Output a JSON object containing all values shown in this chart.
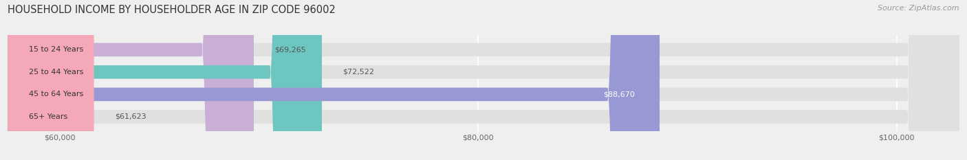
{
  "title": "HOUSEHOLD INCOME BY HOUSEHOLDER AGE IN ZIP CODE 96002",
  "source": "Source: ZipAtlas.com",
  "categories": [
    "15 to 24 Years",
    "25 to 44 Years",
    "45 to 64 Years",
    "65+ Years"
  ],
  "values": [
    69265,
    72522,
    88670,
    61623
  ],
  "bar_colors": [
    "#c9aed6",
    "#6ec6c1",
    "#9898d4",
    "#f5a8b8"
  ],
  "bar_labels": [
    "$69,265",
    "$72,522",
    "$88,670",
    "$61,623"
  ],
  "label_colors": [
    "#555555",
    "#555555",
    "#ffffff",
    "#555555"
  ],
  "xlim_min": 57500,
  "xlim_max": 103000,
  "xticks": [
    60000,
    80000,
    100000
  ],
  "xtick_labels": [
    "$60,000",
    "$80,000",
    "$100,000"
  ],
  "background_color": "#efefef",
  "bar_bg_color": "#e0e0e0",
  "title_fontsize": 10.5,
  "source_fontsize": 8,
  "label_fontsize": 8,
  "tick_fontsize": 8,
  "cat_fontsize": 8
}
